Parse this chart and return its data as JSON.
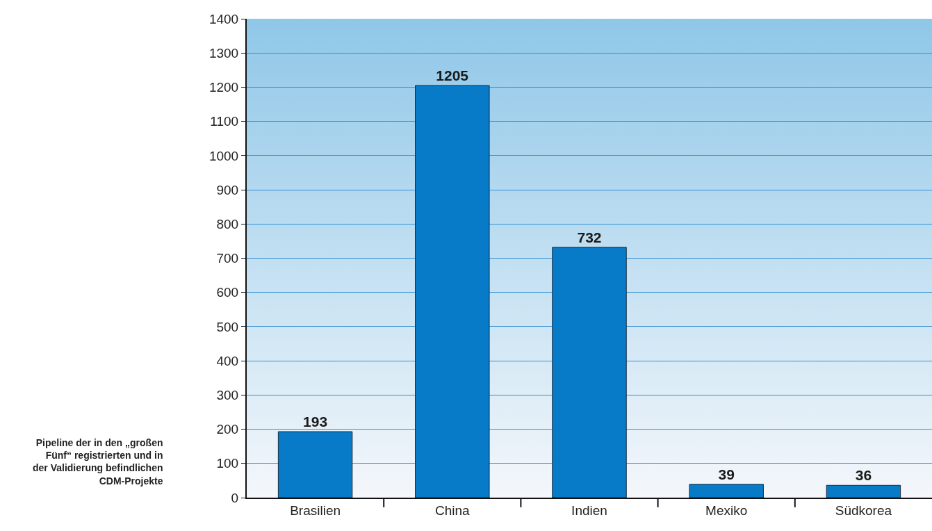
{
  "chart_data": {
    "type": "bar",
    "categories": [
      "Brasilien",
      "China",
      "Indien",
      "Mexiko",
      "Südkorea"
    ],
    "values": [
      193,
      1205,
      732,
      39,
      36
    ],
    "color": "#077bc8",
    "ylim": [
      0,
      1400
    ],
    "yticks": [
      0,
      100,
      200,
      300,
      400,
      500,
      600,
      700,
      800,
      900,
      1000,
      1100,
      1200,
      1300,
      1400
    ],
    "grid": "y",
    "data_labels": true,
    "legend": false,
    "annotations": [
      "Pipeline der in den „großen Fünf“ registrierten und in der Validierung befindlichen CDM-Projekte"
    ]
  }
}
